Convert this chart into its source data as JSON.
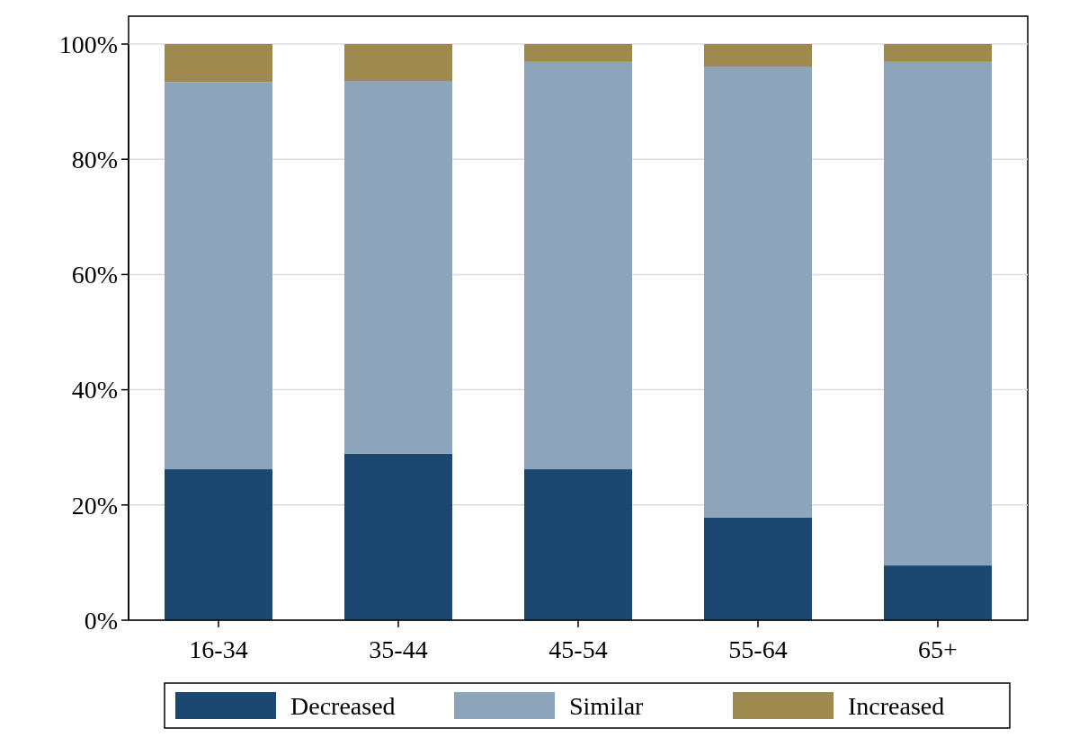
{
  "chart_data": {
    "type": "bar",
    "stacked": true,
    "categories": [
      "16-34",
      "35-44",
      "45-54",
      "55-64",
      "65+"
    ],
    "series": [
      {
        "name": "Decreased",
        "color": "#1c4770",
        "values": [
          26.2,
          28.9,
          26.2,
          17.8,
          9.5
        ]
      },
      {
        "name": "Similar",
        "color": "#8ca5bb",
        "values": [
          67.2,
          64.7,
          70.7,
          78.3,
          87.4
        ]
      },
      {
        "name": "Increased",
        "color": "#9e8a4e",
        "values": [
          6.6,
          6.4,
          3.1,
          3.9,
          3.1
        ]
      }
    ],
    "ylim": [
      0,
      100
    ],
    "yticks": [
      {
        "value": 0,
        "label": "0%"
      },
      {
        "value": 20,
        "label": "20%"
      },
      {
        "value": 40,
        "label": "40%"
      },
      {
        "value": 60,
        "label": "60%"
      },
      {
        "value": 80,
        "label": "80%"
      },
      {
        "value": 100,
        "label": "100%"
      }
    ],
    "grid": "y",
    "legend": "bottom"
  }
}
